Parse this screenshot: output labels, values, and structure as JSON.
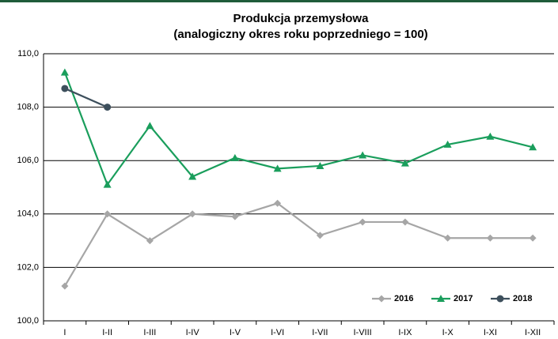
{
  "chart_data": {
    "type": "line",
    "title": "Produkcja przemysłowa",
    "subtitle": "(analogiczny okres roku poprzedniego = 100)",
    "categories": [
      "I",
      "I-II",
      "I-III",
      "I-IV",
      "I-V",
      "I-VI",
      "I-VII",
      "I-VIII",
      "I-IX",
      "I-X",
      "I-XI",
      "I-XII"
    ],
    "series": [
      {
        "name": "2016",
        "color": "#a6a6a6",
        "marker": "diamond",
        "values": [
          101.3,
          104.0,
          103.0,
          104.0,
          103.9,
          104.4,
          103.2,
          103.7,
          103.7,
          103.1,
          103.1,
          103.1
        ]
      },
      {
        "name": "2017",
        "color": "#1a9e5c",
        "marker": "triangle",
        "values": [
          109.3,
          105.1,
          107.3,
          105.4,
          106.1,
          105.7,
          105.8,
          106.2,
          105.9,
          106.6,
          106.9,
          106.5
        ]
      },
      {
        "name": "2018",
        "color": "#3d4f5c",
        "marker": "circle",
        "values": [
          108.7,
          108.0,
          null,
          null,
          null,
          null,
          null,
          null,
          null,
          null,
          null,
          null
        ]
      }
    ],
    "ylim": [
      100,
      110
    ],
    "yticks": [
      {
        "value": 100,
        "label": "100,0"
      },
      {
        "value": 102,
        "label": "102,0"
      },
      {
        "value": 104,
        "label": "104,0"
      },
      {
        "value": 106,
        "label": "106,0"
      },
      {
        "value": 108,
        "label": "108,0"
      },
      {
        "value": 110,
        "label": "110,0"
      }
    ],
    "grid": true,
    "legend": "bottom-right"
  }
}
